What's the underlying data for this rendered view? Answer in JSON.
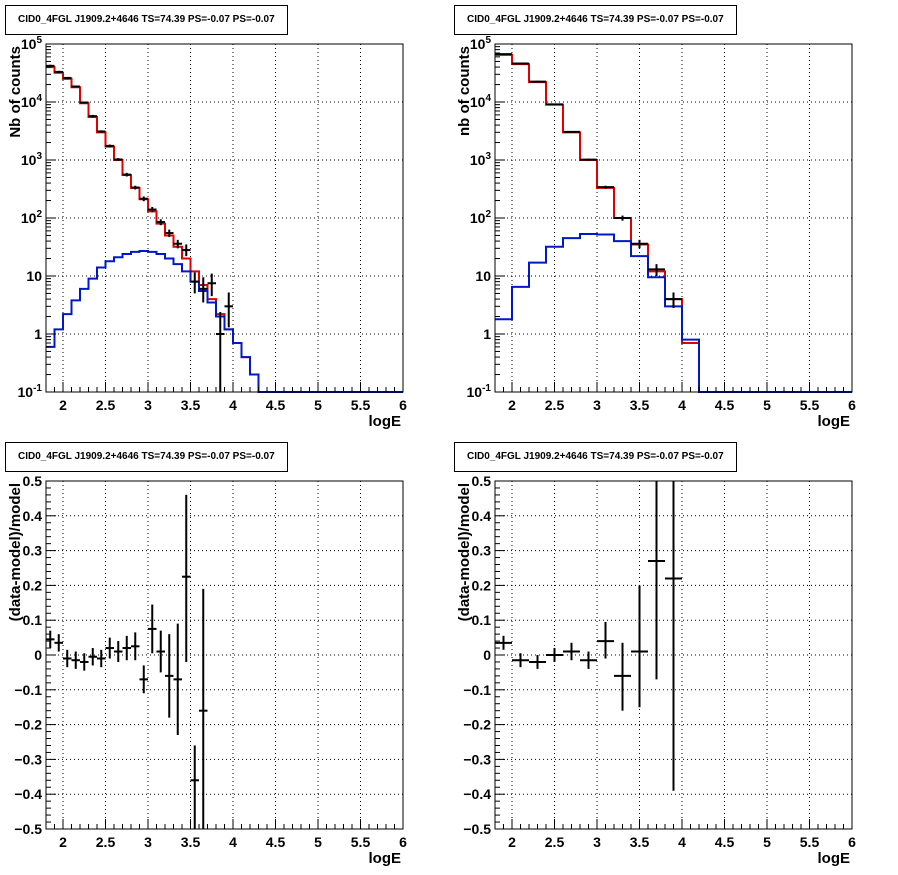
{
  "colors": {
    "data": "#000000",
    "model": "#e00000",
    "component": "#0018c8"
  },
  "chart_data": [
    {
      "type": "line",
      "title": "CID0_4FGL J1909.2+4646 TS=74.39 PS=-0.07 PS=-0.07",
      "xlabel": "logE",
      "ylabel": "Nb of counts",
      "xlim": [
        1.8,
        6
      ],
      "ylim": [
        0.1,
        100000
      ],
      "yscale": "log",
      "grid": true,
      "xticks": [
        "2",
        "2.5",
        "3",
        "3.5",
        "4",
        "4.5",
        "5",
        "5.5",
        "6"
      ],
      "yticks": [
        "10^-1",
        "1",
        "10",
        "10^2",
        "10^3",
        "10^4",
        "10^5"
      ],
      "bin_width": 0.1,
      "series": [
        {
          "kind": "step",
          "x": [
            1.8,
            1.9,
            2.0,
            2.1,
            2.2,
            2.3,
            2.4,
            2.5,
            2.6,
            2.7,
            2.8,
            2.9,
            3.0,
            3.1,
            3.2,
            3.3,
            3.4,
            3.5,
            3.6,
            3.7,
            3.8,
            3.9,
            4.0,
            4.1,
            4.2,
            4.3,
            4.4,
            4.5,
            4.6,
            4.7,
            4.8,
            4.9,
            5.0,
            5.1,
            5.2,
            5.3,
            5.4,
            5.5,
            5.6,
            5.7,
            5.8,
            5.9
          ],
          "y": [
            40000,
            32000,
            25000,
            18000,
            9500,
            5500,
            3000,
            1700,
            1000,
            550,
            330,
            210,
            130,
            80,
            50,
            32,
            20,
            12,
            7,
            4,
            2.2,
            1.2,
            0.7,
            0.4,
            0.2,
            0.1,
            0.1,
            0.1,
            0.1,
            0.1,
            0.1,
            0.1,
            0.1,
            0.1,
            0.1,
            0.1,
            0.1,
            0.1,
            0.1,
            0.1,
            0.1,
            0.1
          ]
        },
        {
          "kind": "step",
          "x": [
            1.8,
            1.9,
            2.0,
            2.1,
            2.2,
            2.3,
            2.4,
            2.5,
            2.6,
            2.7,
            2.8,
            2.9,
            3.0,
            3.1,
            3.2,
            3.3,
            3.4,
            3.5,
            3.6,
            3.7,
            3.8,
            3.9,
            4.0,
            4.1,
            4.2,
            4.3,
            4.4,
            4.5,
            4.6,
            4.7,
            4.8,
            4.9,
            5.0,
            5.1,
            5.2,
            5.3,
            5.4,
            5.5,
            5.6,
            5.7,
            5.8,
            5.9
          ],
          "y": [
            0.6,
            1.2,
            2.2,
            3.8,
            6,
            9,
            14,
            18,
            21,
            24,
            26,
            27,
            26,
            24,
            20,
            16,
            12,
            8,
            5.5,
            3.5,
            2,
            1.2,
            0.7,
            0.4,
            0.2,
            0.1,
            0.1,
            0.1,
            0.1,
            0.1,
            0.1,
            0.1,
            0.1,
            0.1,
            0.1,
            0.1,
            0.1,
            0.1,
            0.1,
            0.1,
            0.1,
            0.1
          ]
        },
        {
          "kind": "points",
          "x": [
            1.85,
            1.95,
            2.05,
            2.15,
            2.25,
            2.35,
            2.45,
            2.55,
            2.65,
            2.75,
            2.85,
            2.95,
            3.05,
            3.15,
            3.25,
            3.35,
            3.45,
            3.55,
            3.65,
            3.75,
            3.85,
            3.95
          ],
          "y": [
            42000,
            33000,
            26000,
            18500,
            9800,
            5700,
            3100,
            1750,
            1020,
            560,
            335,
            215,
            140,
            85,
            55,
            36,
            28,
            8,
            6,
            7.5,
            1,
            3
          ],
          "ylow": [
            40000,
            31500,
            25000,
            17800,
            9400,
            5400,
            2950,
            1650,
            960,
            520,
            310,
            195,
            125,
            75,
            47,
            30,
            22,
            5,
            3.5,
            4.5,
            0.1,
            1.3
          ],
          "yhigh": [
            44000,
            34500,
            27000,
            19200,
            10200,
            6000,
            3250,
            1850,
            1080,
            600,
            360,
            235,
            155,
            95,
            63,
            42,
            35,
            11.5,
            9.5,
            11,
            2.4,
            5.2
          ]
        }
      ]
    },
    {
      "type": "line",
      "title": "CID0_4FGL J1909.2+4646 TS=74.39 PS=-0.07 PS=-0.07",
      "xlabel": "logE",
      "ylabel": "nb of counts",
      "xlim": [
        1.8,
        6
      ],
      "ylim": [
        0.1,
        100000
      ],
      "yscale": "log",
      "grid": true,
      "xticks": [
        "2",
        "2.5",
        "3",
        "3.5",
        "4",
        "4.5",
        "5",
        "5.5",
        "6"
      ],
      "yticks": [
        "10^-1",
        "1",
        "10",
        "10^2",
        "10^3",
        "10^4",
        "10^5"
      ],
      "bin_width": 0.2,
      "series": [
        {
          "kind": "step",
          "x": [
            1.8,
            2.0,
            2.2,
            2.4,
            2.6,
            2.8,
            3.0,
            3.2,
            3.4,
            3.6,
            3.8,
            4.0,
            4.2,
            4.4,
            4.6,
            4.8,
            5.0,
            5.2,
            5.4,
            5.6,
            5.8
          ],
          "y": [
            65000,
            45000,
            22000,
            9000,
            3000,
            1000,
            330,
            100,
            35,
            12,
            4,
            0.7,
            0.1,
            0.1,
            0.1,
            0.1,
            0.1,
            0.1,
            0.1,
            0.1,
            0.1
          ]
        },
        {
          "kind": "step",
          "x": [
            1.8,
            2.0,
            2.2,
            2.4,
            2.6,
            2.8,
            3.0,
            3.2,
            3.4,
            3.6,
            3.8,
            4.0,
            4.2,
            4.4,
            4.6,
            4.8,
            5.0,
            5.2,
            5.4,
            5.6,
            5.8
          ],
          "y": [
            1.8,
            6.5,
            17,
            32,
            45,
            53,
            52,
            40,
            22,
            9.5,
            3,
            0.8,
            0.1,
            0.1,
            0.1,
            0.1,
            0.1,
            0.1,
            0.1,
            0.1,
            0.1
          ]
        },
        {
          "kind": "points",
          "x": [
            1.9,
            2.1,
            2.3,
            2.5,
            2.7,
            2.9,
            3.1,
            3.3,
            3.5,
            3.7,
            3.9
          ],
          "y": [
            67000,
            46000,
            22500,
            9100,
            3050,
            1015,
            340,
            100,
            36,
            13,
            4
          ],
          "ylow": [
            65500,
            45000,
            21800,
            8800,
            2950,
            970,
            320,
            90,
            30,
            10,
            2.8
          ],
          "yhigh": [
            68500,
            47000,
            23200,
            9400,
            3150,
            1060,
            360,
            110,
            42,
            16,
            5.2
          ]
        }
      ]
    },
    {
      "type": "scatter",
      "title": "CID0_4FGL J1909.2+4646 TS=74.39 PS=-0.07 PS=-0.07",
      "xlabel": "logE",
      "ylabel": "(data-model)/model",
      "xlim": [
        1.8,
        6
      ],
      "ylim": [
        -0.5,
        0.5
      ],
      "yscale": "linear",
      "grid": true,
      "xticks": [
        "2",
        "2.5",
        "3",
        "3.5",
        "4",
        "4.5",
        "5",
        "5.5",
        "6"
      ],
      "yticks": [
        "-0.5",
        "-0.4",
        "-0.3",
        "-0.2",
        "-0.1",
        "0",
        "0.1",
        "0.2",
        "0.3",
        "0.4",
        "0.5"
      ],
      "bin_width": 0.1,
      "series": [
        {
          "kind": "points",
          "x": [
            1.85,
            1.95,
            2.05,
            2.15,
            2.25,
            2.35,
            2.45,
            2.55,
            2.65,
            2.75,
            2.85,
            2.95,
            3.05,
            3.15,
            3.25,
            3.35,
            3.45,
            3.55,
            3.65
          ],
          "y": [
            0.045,
            0.035,
            -0.01,
            -0.015,
            -0.02,
            -0.005,
            -0.01,
            0.02,
            0.01,
            0.02,
            0.025,
            -0.07,
            0.075,
            0.01,
            -0.06,
            -0.07,
            0.225,
            -0.36,
            -0.16
          ],
          "ylow": [
            0.02,
            0.01,
            -0.035,
            -0.04,
            -0.045,
            -0.03,
            -0.035,
            -0.01,
            -0.02,
            -0.015,
            -0.015,
            -0.11,
            0.005,
            -0.05,
            -0.18,
            -0.23,
            -0.02,
            -0.5,
            -0.5
          ],
          "yhigh": [
            0.07,
            0.06,
            0.015,
            0.01,
            0.005,
            0.02,
            0.015,
            0.05,
            0.04,
            0.055,
            0.065,
            -0.03,
            0.145,
            0.07,
            0.06,
            0.09,
            0.46,
            -0.26,
            0.19
          ]
        }
      ]
    },
    {
      "type": "scatter",
      "title": "CID0_4FGL J1909.2+4646 TS=74.39 PS=-0.07 PS=-0.07",
      "xlabel": "logE",
      "ylabel": "(data-model)/model",
      "xlim": [
        1.8,
        6
      ],
      "ylim": [
        -0.5,
        0.5
      ],
      "yscale": "linear",
      "grid": true,
      "xticks": [
        "2",
        "2.5",
        "3",
        "3.5",
        "4",
        "4.5",
        "5",
        "5.5",
        "6"
      ],
      "yticks": [
        "-0.5",
        "-0.4",
        "-0.3",
        "-0.2",
        "-0.1",
        "0",
        "0.1",
        "0.2",
        "0.3",
        "0.4",
        "0.5"
      ],
      "bin_width": 0.2,
      "series": [
        {
          "kind": "points",
          "x": [
            1.9,
            2.1,
            2.3,
            2.5,
            2.7,
            2.9,
            3.1,
            3.3,
            3.5,
            3.7,
            3.9
          ],
          "y": [
            0.035,
            -0.015,
            -0.02,
            0.0,
            0.01,
            -0.015,
            0.04,
            -0.06,
            0.01,
            0.27,
            0.22
          ],
          "ylow": [
            0.015,
            -0.035,
            -0.04,
            -0.02,
            -0.015,
            -0.04,
            -0.01,
            -0.16,
            -0.15,
            -0.07,
            -0.39
          ],
          "yhigh": [
            0.055,
            0.005,
            0.0,
            0.02,
            0.035,
            0.01,
            0.095,
            0.035,
            0.2,
            0.5,
            0.5
          ]
        }
      ]
    }
  ]
}
